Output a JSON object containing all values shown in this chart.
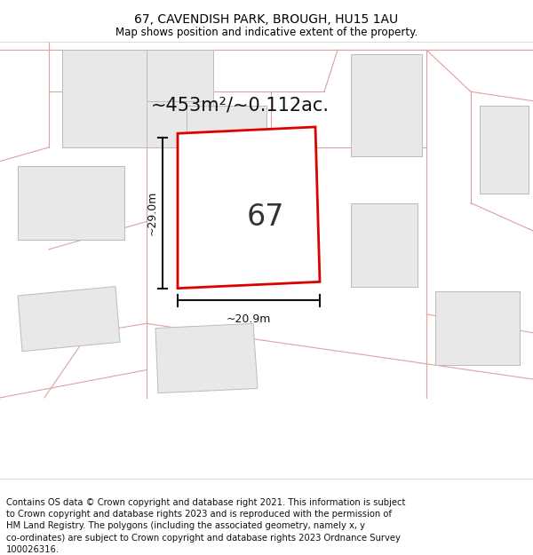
{
  "title": "67, CAVENDISH PARK, BROUGH, HU15 1AU",
  "subtitle": "Map shows position and indicative extent of the property.",
  "footer": "Contains OS data © Crown copyright and database right 2021. This information is subject\nto Crown copyright and database rights 2023 and is reproduced with the permission of\nHM Land Registry. The polygons (including the associated geometry, namely x, y\nco-ordinates) are subject to Crown copyright and database rights 2023 Ordnance Survey\n100026316.",
  "area_label": "~453m²/~0.112ac.",
  "plot_number": "67",
  "width_label": "~20.9m",
  "height_label": "~29.0m",
  "bg_color": "#ffffff",
  "building_fill": "#e8e8e8",
  "boundary_color": "#e0a0a0",
  "plot_color": "#dd0000",
  "dim_color": "#111111",
  "title_fontsize": 10,
  "subtitle_fontsize": 8.5,
  "footer_fontsize": 7.2,
  "area_fontsize": 15
}
